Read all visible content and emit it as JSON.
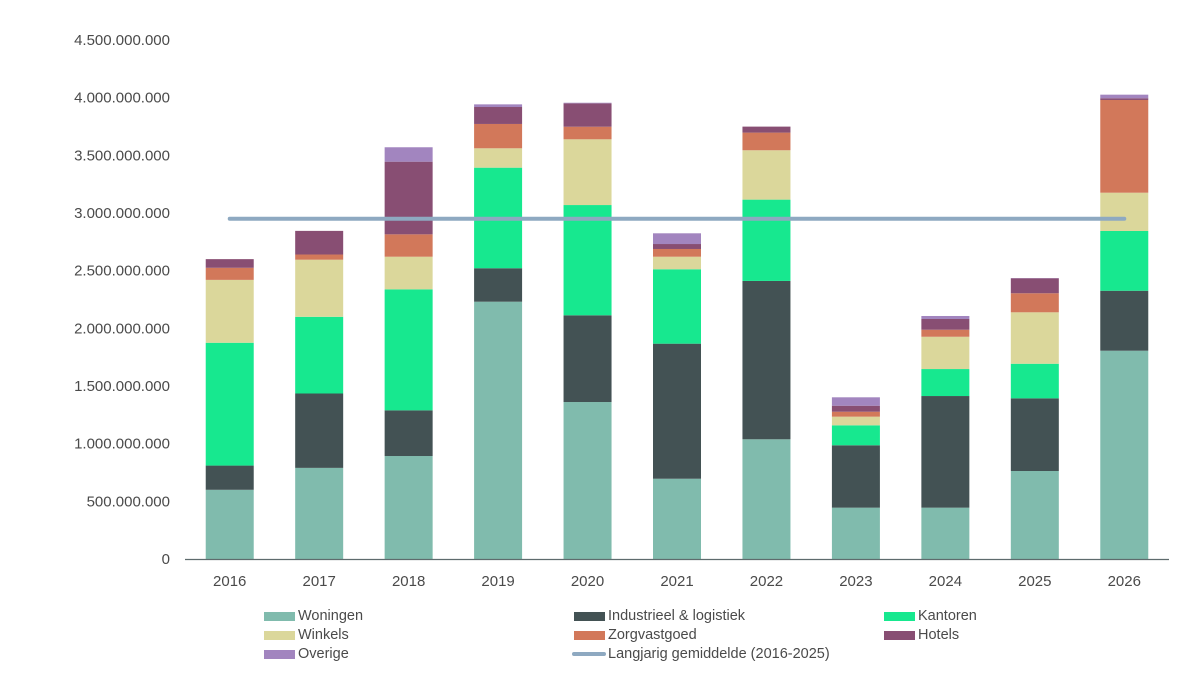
{
  "chart_data": {
    "type": "bar",
    "stacked": true,
    "title": "",
    "xlabel": "",
    "ylabel": "",
    "ylim": [
      0,
      4500000000
    ],
    "yticks": [
      0,
      500000000,
      1000000000,
      1500000000,
      2000000000,
      2500000000,
      3000000000,
      3500000000,
      4000000000,
      4500000000
    ],
    "ytick_labels": [
      "0",
      "500.000.000",
      "1.000.000.000",
      "1.500.000.000",
      "2.000.000.000",
      "2.500.000.000",
      "3.000.000.000",
      "3.500.000.000",
      "4.000.000.000",
      "4.500.000.000"
    ],
    "grid": false,
    "legend_position": "bottom",
    "categories": [
      "2016",
      "2017",
      "2018",
      "2019",
      "2020",
      "2021",
      "2022",
      "2023",
      "2024",
      "2025",
      "2026"
    ],
    "series": [
      {
        "name": "Woningen",
        "color": "#80BBAD",
        "values": [
          600000000,
          790000000,
          893000000,
          2231000000,
          1361000000,
          696000000,
          1038000000,
          445000000,
          445000000,
          763000000,
          1806000000
        ]
      },
      {
        "name": "Industrieel & logistiek",
        "color": "#435254",
        "values": [
          210000000,
          645000000,
          396000000,
          290000000,
          752000000,
          1171000000,
          1373000000,
          541000000,
          968000000,
          630000000,
          520000000
        ]
      },
      {
        "name": "Kantoren",
        "color": "#17E88F",
        "values": [
          1065000000,
          665000000,
          1049000000,
          872000000,
          956000000,
          645000000,
          705000000,
          173000000,
          234000000,
          300000000,
          518000000
        ]
      },
      {
        "name": "Winkels",
        "color": "#DBD79B",
        "values": [
          545000000,
          495000000,
          283000000,
          168000000,
          570000000,
          109000000,
          428000000,
          75000000,
          280000000,
          446000000,
          332000000
        ]
      },
      {
        "name": "Zorgvastgoed",
        "color": "#D2785A",
        "values": [
          105000000,
          45000000,
          194000000,
          211000000,
          109000000,
          67000000,
          153000000,
          43000000,
          61000000,
          165000000,
          804000000
        ]
      },
      {
        "name": "Hotels",
        "color": "#884E73",
        "values": [
          75000000,
          205000000,
          630000000,
          147000000,
          203000000,
          43000000,
          52000000,
          52000000,
          93000000,
          130000000,
          15000000
        ]
      },
      {
        "name": "Overige",
        "color": "#A285BF",
        "values": [
          0,
          0,
          125000000,
          23000000,
          5000000,
          93000000,
          0,
          73000000,
          26000000,
          2000000,
          31000000
        ]
      }
    ],
    "reference_line": {
      "name": "Langjarig gemiddelde (2016-2025)",
      "color": "#8EA9C1",
      "value": 2950000000,
      "from_category": "2016",
      "to_category": "2026"
    }
  },
  "legend": {
    "items": [
      {
        "label": "Woningen",
        "color": "#80BBAD",
        "kind": "bar"
      },
      {
        "label": "Industrieel & logistiek",
        "color": "#435254",
        "kind": "bar"
      },
      {
        "label": "Kantoren",
        "color": "#17E88F",
        "kind": "bar"
      },
      {
        "label": "Winkels",
        "color": "#DBD79B",
        "kind": "bar"
      },
      {
        "label": "Zorgvastgoed",
        "color": "#D2785A",
        "kind": "bar"
      },
      {
        "label": "Hotels",
        "color": "#884E73",
        "kind": "bar"
      },
      {
        "label": "Overige",
        "color": "#A285BF",
        "kind": "bar"
      },
      {
        "label": "Langjarig gemiddelde (2016-2025)",
        "color": "#8EA9C1",
        "kind": "line"
      }
    ]
  },
  "colors": {
    "axis": "#5E6B6D",
    "tick_text": "#4a4a4a"
  }
}
